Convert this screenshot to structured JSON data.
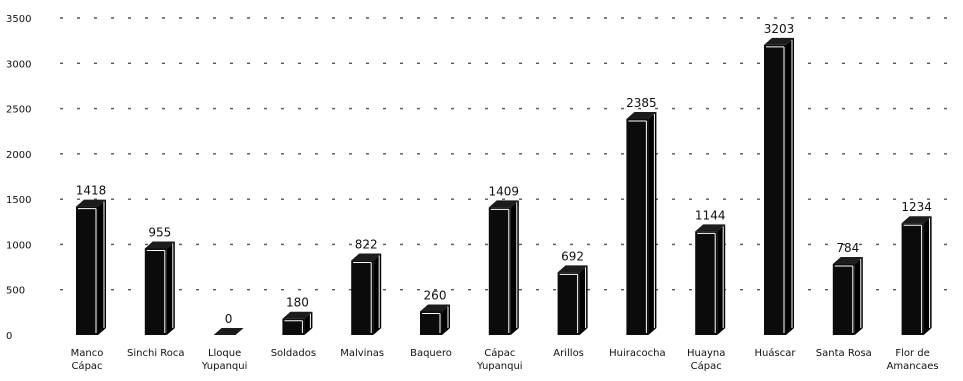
{
  "chart_data": {
    "type": "bar",
    "title": "",
    "xlabel": "",
    "ylabel": "",
    "ylim": [
      0,
      3500
    ],
    "yticks": [
      "0",
      "500",
      "1000",
      "1500",
      "2000",
      "2500",
      "3000",
      "3500"
    ],
    "grid": true,
    "style": "3d-column",
    "categories": [
      "Manco Cápac",
      "Sinchi Roca",
      "Lloque Yupanqui",
      "Soldados",
      "Malvinas",
      "Baquero",
      "Cápac Yupanqui",
      "Arillos",
      "Huiracocha",
      "Huayna Cápac",
      "Huáscar",
      "Santa Rosa",
      "Flor de Amancaes"
    ],
    "category_lines": [
      [
        "Manco",
        "Cápac"
      ],
      [
        "Sinchi Roca"
      ],
      [
        "Lloque",
        "Yupanqui"
      ],
      [
        "Soldados"
      ],
      [
        "Malvinas"
      ],
      [
        "Baquero"
      ],
      [
        "Cápac",
        "Yupanqui"
      ],
      [
        "Arillos"
      ],
      [
        "Huiracocha"
      ],
      [
        "Huayna",
        "Cápac"
      ],
      [
        "Huáscar"
      ],
      [
        "Santa Rosa"
      ],
      [
        "Flor de",
        "Amancaes"
      ]
    ],
    "values": [
      1418,
      955,
      0,
      180,
      822,
      260,
      1409,
      692,
      2385,
      1144,
      3203,
      784,
      1234
    ],
    "colors": {
      "bar": "#0b0b0b",
      "bar_top": "#1c1c1c",
      "bar_side": "#000000",
      "highlight": "#ffffff",
      "grid": "#555555",
      "text": "#111111"
    }
  }
}
